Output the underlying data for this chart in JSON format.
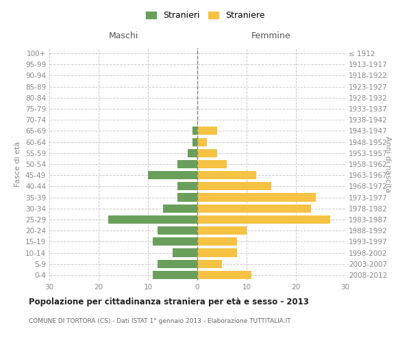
{
  "age_groups": [
    "0-4",
    "5-9",
    "10-14",
    "15-19",
    "20-24",
    "25-29",
    "30-34",
    "35-39",
    "40-44",
    "45-49",
    "50-54",
    "55-59",
    "60-64",
    "65-69",
    "70-74",
    "75-79",
    "80-84",
    "85-89",
    "90-94",
    "95-99",
    "100+"
  ],
  "birth_years": [
    "2008-2012",
    "2003-2007",
    "1998-2002",
    "1993-1997",
    "1988-1992",
    "1983-1987",
    "1978-1982",
    "1973-1977",
    "1968-1972",
    "1963-1967",
    "1958-1962",
    "1953-1957",
    "1948-1952",
    "1943-1947",
    "1938-1942",
    "1933-1937",
    "1928-1932",
    "1923-1927",
    "1918-1922",
    "1913-1917",
    "≤ 1912"
  ],
  "males": [
    9,
    8,
    5,
    9,
    8,
    18,
    7,
    4,
    4,
    10,
    4,
    2,
    1,
    1,
    0,
    0,
    0,
    0,
    0,
    0,
    0
  ],
  "females": [
    11,
    5,
    8,
    8,
    10,
    27,
    23,
    24,
    15,
    12,
    6,
    4,
    2,
    4,
    0,
    0,
    0,
    0,
    0,
    0,
    0
  ],
  "male_color": "#6a9f5b",
  "female_color": "#f5c244",
  "title": "Popolazione per cittadinanza straniera per età e sesso - 2013",
  "subtitle": "COMUNE DI TORTORA (CS) - Dati ISTAT 1° gennaio 2013 - Elaborazione TUTTITALIA.IT",
  "xlabel_left": "Maschi",
  "xlabel_right": "Femmine",
  "ylabel_left": "Fasce di età",
  "ylabel_right": "Anni di nascita",
  "legend_males": "Stranieri",
  "legend_females": "Straniere",
  "xlim": 30,
  "background_color": "#ffffff",
  "grid_color": "#cccccc"
}
